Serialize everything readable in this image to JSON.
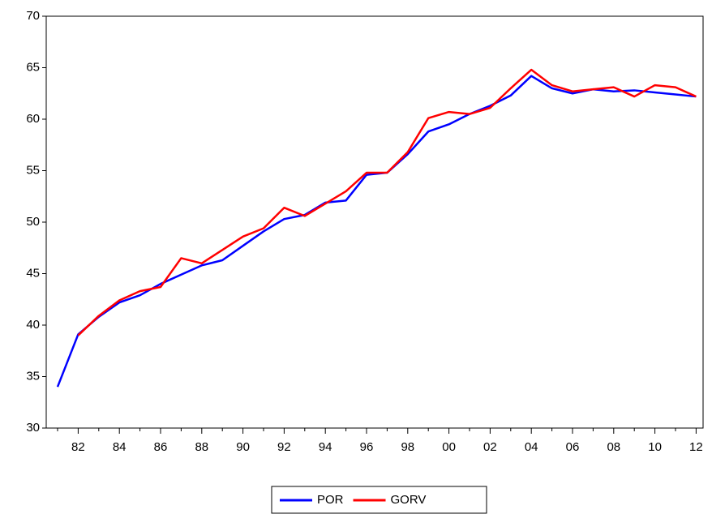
{
  "chart_data": {
    "type": "line",
    "categories": [
      null,
      "82",
      null,
      "84",
      null,
      "86",
      null,
      "88",
      null,
      "90",
      null,
      "92",
      null,
      "94",
      null,
      "96",
      null,
      "98",
      null,
      "00",
      null,
      "02",
      null,
      "04",
      null,
      "06",
      null,
      "08",
      null,
      "10",
      null,
      "12"
    ],
    "series": [
      {
        "name": "POR",
        "color": "#0000ff",
        "values": [
          34.0,
          39.1,
          40.8,
          42.2,
          42.9,
          44.0,
          44.9,
          45.8,
          46.3,
          47.7,
          49.1,
          50.3,
          50.7,
          51.9,
          52.1,
          54.6,
          54.8,
          56.6,
          58.8,
          59.5,
          60.5,
          61.3,
          62.3,
          64.2,
          63.0,
          62.5,
          62.9,
          62.7,
          62.8,
          62.6,
          62.4,
          62.2
        ]
      },
      {
        "name": "GORV",
        "color": "#ff0000",
        "values": [
          null,
          39.0,
          40.9,
          42.4,
          43.3,
          43.7,
          46.5,
          46.0,
          47.3,
          48.6,
          49.4,
          51.4,
          50.6,
          51.8,
          53.0,
          54.8,
          54.8,
          56.8,
          60.1,
          60.7,
          60.5,
          61.1,
          63.0,
          64.8,
          63.3,
          62.7,
          62.9,
          63.1,
          62.2,
          63.3,
          63.1,
          62.2
        ]
      }
    ],
    "ylim": [
      30,
      70
    ],
    "yticks": [
      30,
      35,
      40,
      45,
      50,
      55,
      60,
      65,
      70
    ],
    "grid": false,
    "legend": "bottom"
  }
}
